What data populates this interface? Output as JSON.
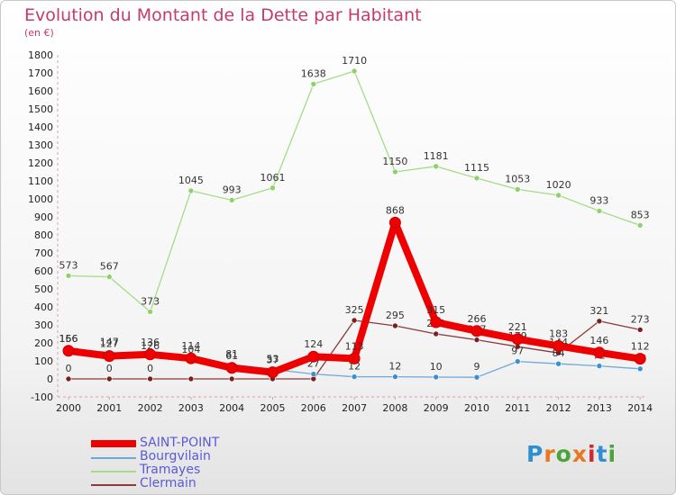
{
  "header": {
    "title": "Evolution du Montant de la Dette par Habitant",
    "subtitle": "(en €)"
  },
  "logo": {
    "text": "Proxiti",
    "colors": [
      "#2e8fd1",
      "#e8771f",
      "#4aa33b",
      "#e8771f",
      "#d1282e",
      "#2e8fd1",
      "#4aa33b"
    ]
  },
  "chart_data": {
    "type": "line",
    "x": [
      "2000",
      "2001",
      "2002",
      "2003",
      "2004",
      "2005",
      "2006",
      "2007",
      "2008",
      "2009",
      "2010",
      "2011",
      "2012",
      "2013",
      "2014"
    ],
    "ylim": [
      -100,
      1800
    ],
    "yticks": [
      -100,
      0,
      100,
      200,
      300,
      400,
      500,
      600,
      700,
      800,
      900,
      1000,
      1100,
      1200,
      1300,
      1400,
      1500,
      1600,
      1700,
      1800
    ],
    "grid": false,
    "legend_position": "bottom-left",
    "series": [
      {
        "name": "Tramayes",
        "color": "#8fd16a",
        "line_color": "#a6dc86",
        "values": [
          573,
          567,
          373,
          1045,
          993,
          1061,
          1638,
          1710,
          1150,
          1181,
          1115,
          1053,
          1020,
          933,
          853
        ],
        "labels": [
          "573",
          "567",
          "373",
          "1045",
          "993",
          "1061",
          "1638",
          "1710",
          "1150",
          "1181",
          "1115",
          "1053",
          "1020",
          "933",
          "853"
        ]
      },
      {
        "name": "Clermain",
        "color": "#7a1e1e",
        "line_color": "#8a3a3a",
        "values": [
          0,
          0,
          0,
          0,
          0,
          0,
          0,
          325,
          295,
          250,
          217,
          179,
          144,
          321,
          273
        ],
        "labels": [
          "0",
          "0",
          "0",
          "",
          "",
          "",
          "",
          "325",
          "295",
          "250",
          "217",
          "179",
          "144",
          "321",
          "273"
        ]
      },
      {
        "name": "Bourgvilain",
        "color": "#3a8fd0",
        "line_color": "#6fa8d6",
        "values": [
          166,
          147,
          126,
          104,
          81,
          53,
          27,
          12,
          12,
          10,
          9,
          97,
          84,
          72,
          56
        ],
        "labels": [
          "166",
          "147",
          "126",
          "104",
          "81",
          "53",
          "27",
          "12",
          "12",
          "10",
          "9",
          "97",
          "84",
          "72",
          "56"
        ]
      },
      {
        "name": "SAINT-POINT",
        "color": "#ee0000",
        "line_color": "#ee0000",
        "values": [
          156,
          127,
          136,
          114,
          61,
          37,
          124,
          113,
          868,
          315,
          266,
          221,
          183,
          146,
          112
        ],
        "labels": [
          "156",
          "127",
          "136",
          "114",
          "61",
          "37",
          "124",
          "113",
          "868",
          "315",
          "266",
          "221",
          "183",
          "146",
          "112"
        ]
      }
    ]
  },
  "legend": [
    {
      "name": "SAINT-POINT",
      "color": "#ee0000",
      "thick": true
    },
    {
      "name": "Bourgvilain",
      "color": "#6fa8d6",
      "thick": false
    },
    {
      "name": "Tramayes",
      "color": "#a6dc86",
      "thick": false
    },
    {
      "name": "Clermain",
      "color": "#8a3a3a",
      "thick": false
    }
  ]
}
